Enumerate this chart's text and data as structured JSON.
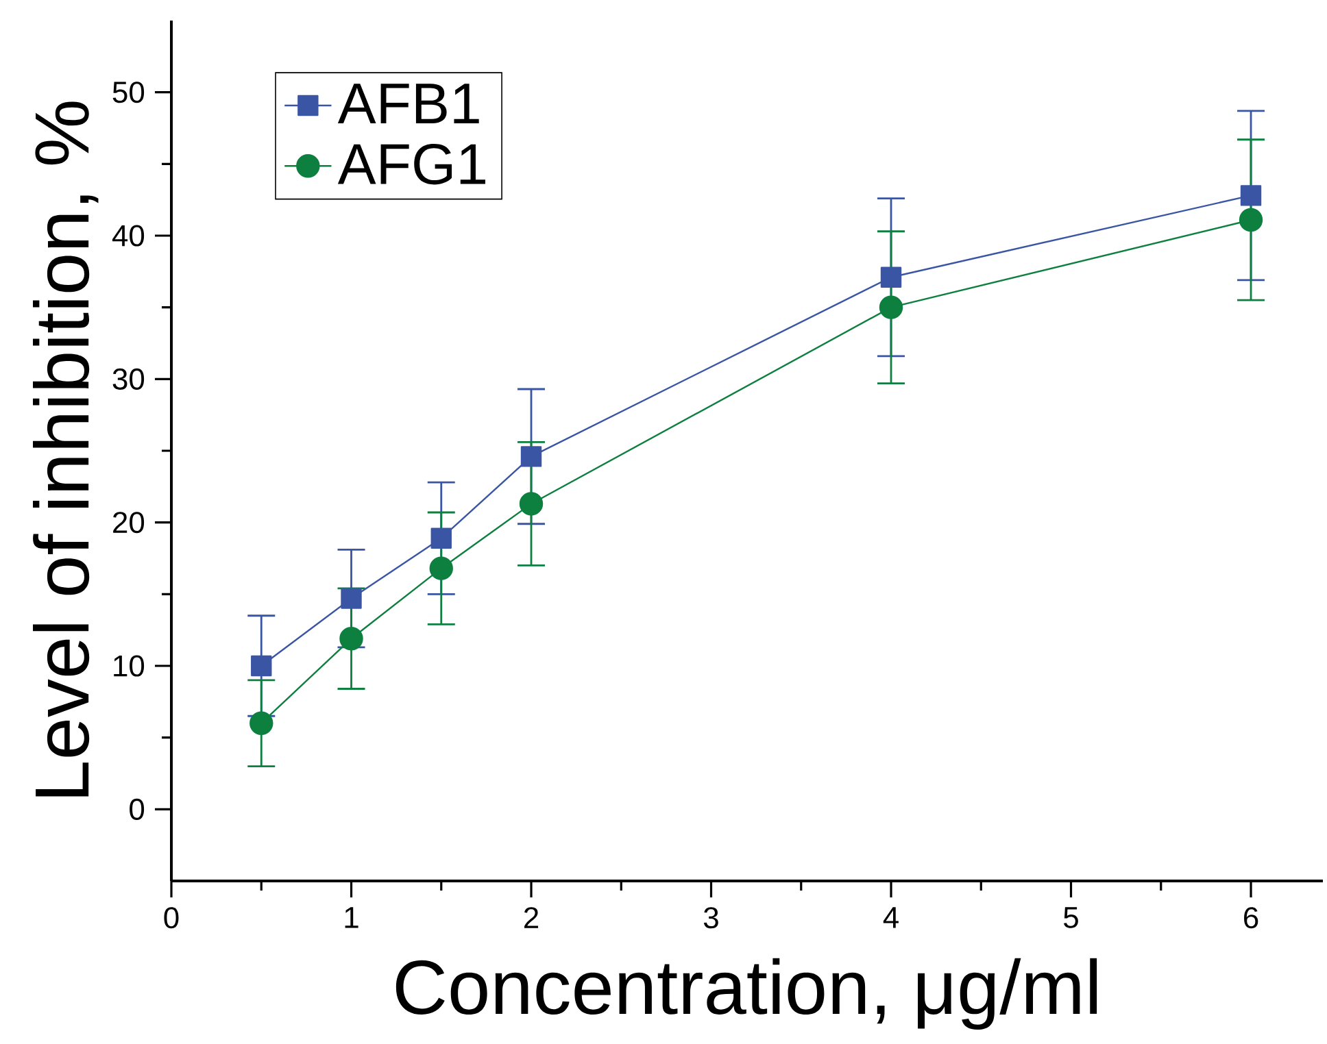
{
  "chart_data": {
    "type": "line",
    "xlabel": "Concentration, μg/ml",
    "ylabel": "Level of inhibition, %",
    "x": [
      0.5,
      1,
      1.5,
      2,
      4,
      6
    ],
    "series": [
      {
        "name": "AFB1",
        "color": "#3a55a4",
        "marker": "square",
        "values": [
          10.0,
          14.7,
          18.9,
          24.6,
          37.1,
          42.8
        ],
        "errors": [
          3.5,
          3.4,
          3.9,
          4.7,
          5.5,
          5.9
        ]
      },
      {
        "name": "AFG1",
        "color": "#0d7f3f",
        "marker": "circle",
        "values": [
          6.0,
          11.9,
          16.8,
          21.3,
          35.0,
          41.1
        ],
        "errors": [
          3.0,
          3.5,
          3.9,
          4.3,
          5.3,
          5.6
        ]
      }
    ],
    "xlim": [
      0,
      6.4
    ],
    "ylim": [
      -5,
      55
    ],
    "xticks": [
      0,
      1,
      2,
      3,
      4,
      5,
      6
    ],
    "yticks": [
      0,
      10,
      20,
      30,
      40,
      50
    ],
    "grid": false,
    "legend": "top left",
    "line_style": "solid"
  }
}
